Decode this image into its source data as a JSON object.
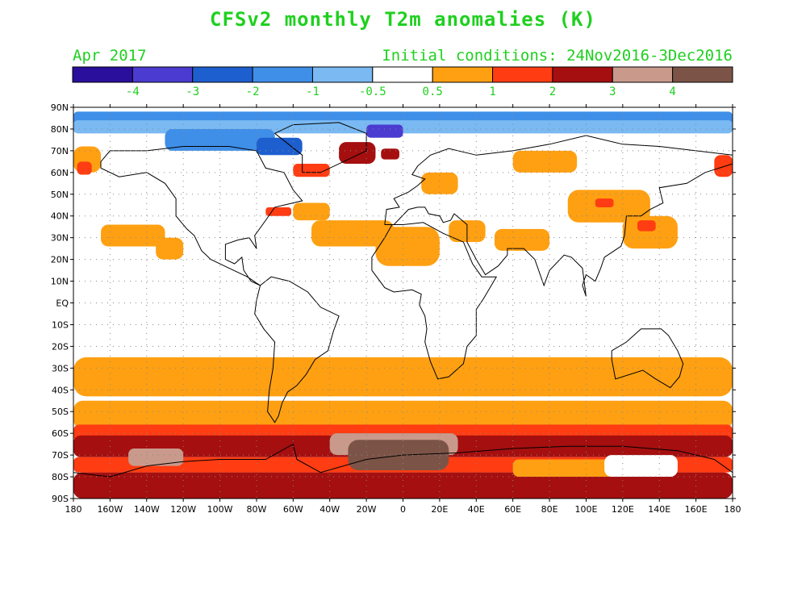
{
  "title": "CFSv2 monthly T2m anomalies (K)",
  "forecast_month": "Apr 2017",
  "initial_conditions": "Initial conditions: 24Nov2016-3Dec2016",
  "colorbar": {
    "bins": [
      {
        "color": "#2a0f9c"
      },
      {
        "color": "#4b3bd1"
      },
      {
        "color": "#1e5fcf"
      },
      {
        "color": "#3f8fe8"
      },
      {
        "color": "#7ab9f2"
      },
      {
        "color": "#ffffff"
      },
      {
        "color": "#ffa012"
      },
      {
        "color": "#ff3c12"
      },
      {
        "color": "#a50f0f"
      },
      {
        "color": "#c99a8c"
      },
      {
        "color": "#7c5447"
      }
    ],
    "labels": [
      "-4",
      "-3",
      "-2",
      "-1",
      "-0.5",
      "0.5",
      "1",
      "2",
      "3",
      "4"
    ],
    "label_color": "#1fd01f"
  },
  "map": {
    "lat_ticks": [
      "90N",
      "80N",
      "70N",
      "60N",
      "50N",
      "40N",
      "30N",
      "20N",
      "10N",
      "EQ",
      "10S",
      "20S",
      "30S",
      "40S",
      "50S",
      "60S",
      "70S",
      "80S",
      "90S"
    ],
    "lon_ticks": [
      "180",
      "160W",
      "140W",
      "120W",
      "100W",
      "80W",
      "60W",
      "40W",
      "20W",
      "0",
      "20E",
      "40E",
      "60E",
      "80E",
      "100E",
      "120E",
      "140E",
      "160E",
      "180"
    ],
    "lat_range": [
      -90,
      90
    ],
    "lon_range": [
      -180,
      180
    ]
  },
  "anomaly_regions": [
    {
      "lon": -180,
      "lat": 88,
      "w": 360,
      "h": 6,
      "level": 3
    },
    {
      "lon": -180,
      "lat": 84,
      "w": 360,
      "h": 6,
      "level": 4
    },
    {
      "lon": -130,
      "lat": 80,
      "w": 60,
      "h": 10,
      "level": 3
    },
    {
      "lon": -80,
      "lat": 76,
      "w": 25,
      "h": 8,
      "level": 2
    },
    {
      "lon": -20,
      "lat": 82,
      "w": 20,
      "h": 6,
      "level": 1
    },
    {
      "lon": -180,
      "lat": 72,
      "w": 15,
      "h": 12,
      "level": 6
    },
    {
      "lon": -178,
      "lat": 65,
      "w": 8,
      "h": 6,
      "level": 7
    },
    {
      "lon": -35,
      "lat": 74,
      "w": 20,
      "h": 10,
      "level": 8
    },
    {
      "lon": -12,
      "lat": 71,
      "w": 10,
      "h": 5,
      "level": 8
    },
    {
      "lon": -60,
      "lat": 64,
      "w": 20,
      "h": 6,
      "level": 7
    },
    {
      "lon": 10,
      "lat": 60,
      "w": 20,
      "h": 10,
      "level": 6
    },
    {
      "lon": 60,
      "lat": 70,
      "w": 35,
      "h": 10,
      "level": 6
    },
    {
      "lon": 170,
      "lat": 68,
      "w": 10,
      "h": 10,
      "level": 7
    },
    {
      "lon": 90,
      "lat": 52,
      "w": 45,
      "h": 15,
      "level": 6
    },
    {
      "lon": 105,
      "lat": 48,
      "w": 10,
      "h": 4,
      "level": 7
    },
    {
      "lon": 120,
      "lat": 40,
      "w": 30,
      "h": 15,
      "level": 6
    },
    {
      "lon": 128,
      "lat": 38,
      "w": 10,
      "h": 5,
      "level": 7
    },
    {
      "lon": -60,
      "lat": 46,
      "w": 20,
      "h": 8,
      "level": 6
    },
    {
      "lon": -75,
      "lat": 44,
      "w": 14,
      "h": 4,
      "level": 7
    },
    {
      "lon": -165,
      "lat": 36,
      "w": 35,
      "h": 10,
      "level": 6
    },
    {
      "lon": -135,
      "lat": 30,
      "w": 15,
      "h": 10,
      "level": 6
    },
    {
      "lon": -50,
      "lat": 38,
      "w": 45,
      "h": 12,
      "level": 6
    },
    {
      "lon": -15,
      "lat": 35,
      "w": 35,
      "h": 18,
      "level": 6
    },
    {
      "lon": 25,
      "lat": 38,
      "w": 20,
      "h": 10,
      "level": 6
    },
    {
      "lon": 50,
      "lat": 34,
      "w": 30,
      "h": 10,
      "level": 6
    },
    {
      "lon": -180,
      "lat": -25,
      "w": 360,
      "h": 18,
      "level": 6
    },
    {
      "lon": -180,
      "lat": -45,
      "w": 360,
      "h": 13,
      "level": 6
    },
    {
      "lon": -180,
      "lat": -56,
      "w": 360,
      "h": 8,
      "level": 7
    },
    {
      "lon": -180,
      "lat": -61,
      "w": 360,
      "h": 10,
      "level": 8
    },
    {
      "lon": -180,
      "lat": -71,
      "w": 360,
      "h": 7,
      "level": 7
    },
    {
      "lon": -40,
      "lat": -60,
      "w": 70,
      "h": 10,
      "level": 9
    },
    {
      "lon": -30,
      "lat": -63,
      "w": 55,
      "h": 14,
      "level": 10
    },
    {
      "lon": -150,
      "lat": -67,
      "w": 30,
      "h": 8,
      "level": 9
    },
    {
      "lon": -180,
      "lat": -78,
      "w": 360,
      "h": 12,
      "level": 8
    },
    {
      "lon": 60,
      "lat": -72,
      "w": 60,
      "h": 8,
      "level": 6
    },
    {
      "lon": 110,
      "lat": -70,
      "w": 40,
      "h": 10,
      "level": 5
    }
  ]
}
